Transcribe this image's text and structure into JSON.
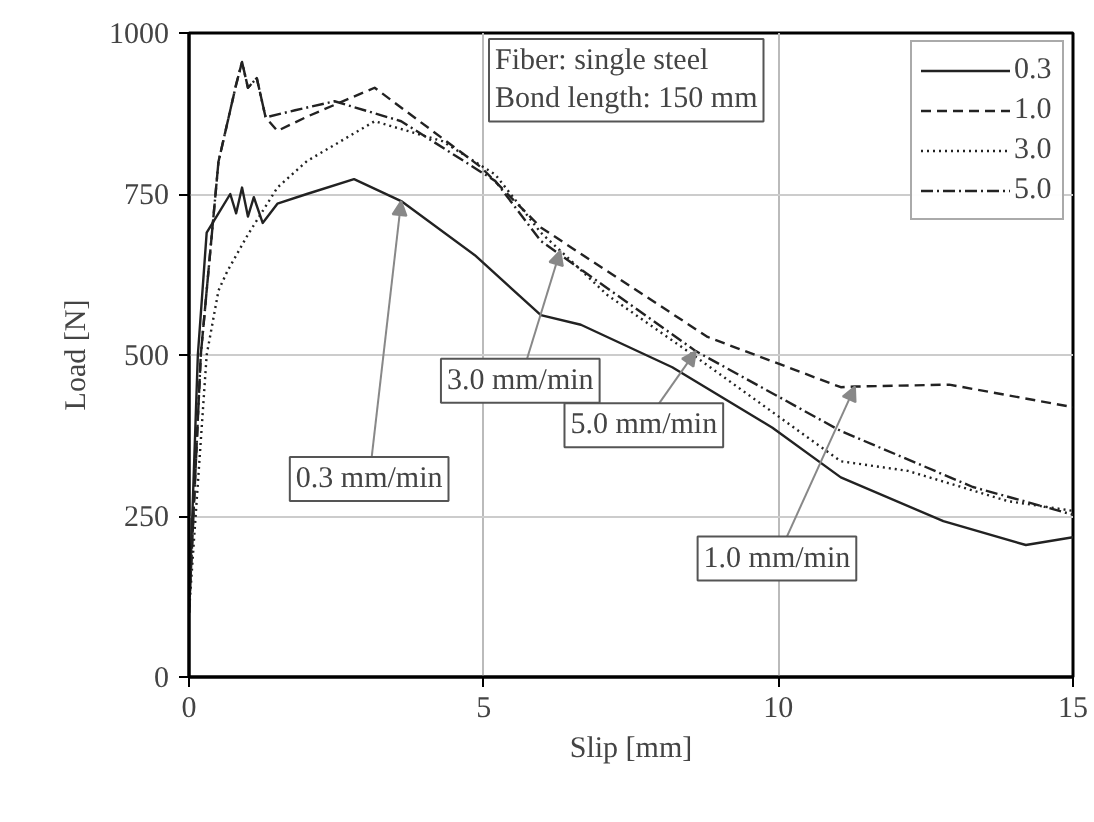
{
  "chart_data": {
    "type": "line",
    "xlabel": "Slip [mm]",
    "ylabel": "Load [N]",
    "xlim": [
      0,
      15
    ],
    "ylim": [
      0,
      1000
    ],
    "xticks": [
      0,
      5,
      10,
      15
    ],
    "yticks": [
      0,
      250,
      500,
      750,
      1000
    ],
    "grid": true,
    "legend": "top right",
    "series": [
      {
        "name": "0.3",
        "color": "#222222",
        "line_style": "solid",
        "x": [
          0,
          0.15,
          0.3,
          0.5,
          0.7,
          0.8,
          0.9,
          1.0,
          1.1,
          1.25,
          1.5,
          2.0,
          2.8,
          3.6,
          4.85,
          5.97,
          6.65,
          8.2,
          9.9,
          11.06,
          12.8,
          14.2,
          15
        ],
        "values": [
          100,
          500,
          690,
          720,
          750,
          720,
          760,
          715,
          745,
          705,
          735,
          750,
          773,
          739,
          655,
          562,
          547,
          481,
          387,
          310,
          242,
          205,
          217
        ]
      },
      {
        "name": "1.0",
        "color": "#222222",
        "line_style": "dashed",
        "x": [
          0,
          0.2,
          0.5,
          0.8,
          0.9,
          1.0,
          1.15,
          1.3,
          1.5,
          2.0,
          3.15,
          4.95,
          5.97,
          8.8,
          11.06,
          11.3,
          12.9,
          15
        ],
        "values": [
          100,
          500,
          800,
          920,
          955,
          915,
          930,
          869,
          848,
          870,
          915,
          792,
          698,
          528,
          450,
          451,
          454,
          419
        ]
      },
      {
        "name": "3.0",
        "color": "#222222",
        "line_style": "dotted",
        "x": [
          0,
          0.3,
          0.5,
          0.65,
          1.0,
          1.5,
          2.0,
          3.15,
          4.3,
          5.2,
          5.97,
          6.3,
          7.1,
          8.6,
          11.06,
          12.2,
          13.9,
          15
        ],
        "values": [
          100,
          500,
          600,
          630,
          687,
          760,
          801,
          863,
          832,
          780,
          690,
          662,
          593,
          497,
          335,
          320,
          273,
          258
        ]
      },
      {
        "name": "5.0",
        "color": "#222222",
        "line_style": "dashdot",
        "x": [
          0,
          0.2,
          0.5,
          0.8,
          0.9,
          1.0,
          1.15,
          1.3,
          1.8,
          2.47,
          3.6,
          5.2,
          5.97,
          8.6,
          11.06,
          13.3,
          15
        ],
        "values": [
          100,
          500,
          800,
          920,
          955,
          915,
          930,
          869,
          880,
          894,
          863,
          770,
          677,
          506,
          382,
          295,
          252
        ]
      }
    ],
    "annotations": [
      "Fiber: single steel\nBond length: 150 mm",
      {
        "text": "0.3 mm/min",
        "x": 3.6,
        "y": 739
      },
      {
        "text": "3.0 mm/min",
        "x": 6.3,
        "y": 662
      },
      {
        "text": "5.0 mm/min",
        "x": 8.6,
        "y": 506
      },
      {
        "text": "1.0 mm/min",
        "x": 11.3,
        "y": 451
      }
    ]
  }
}
